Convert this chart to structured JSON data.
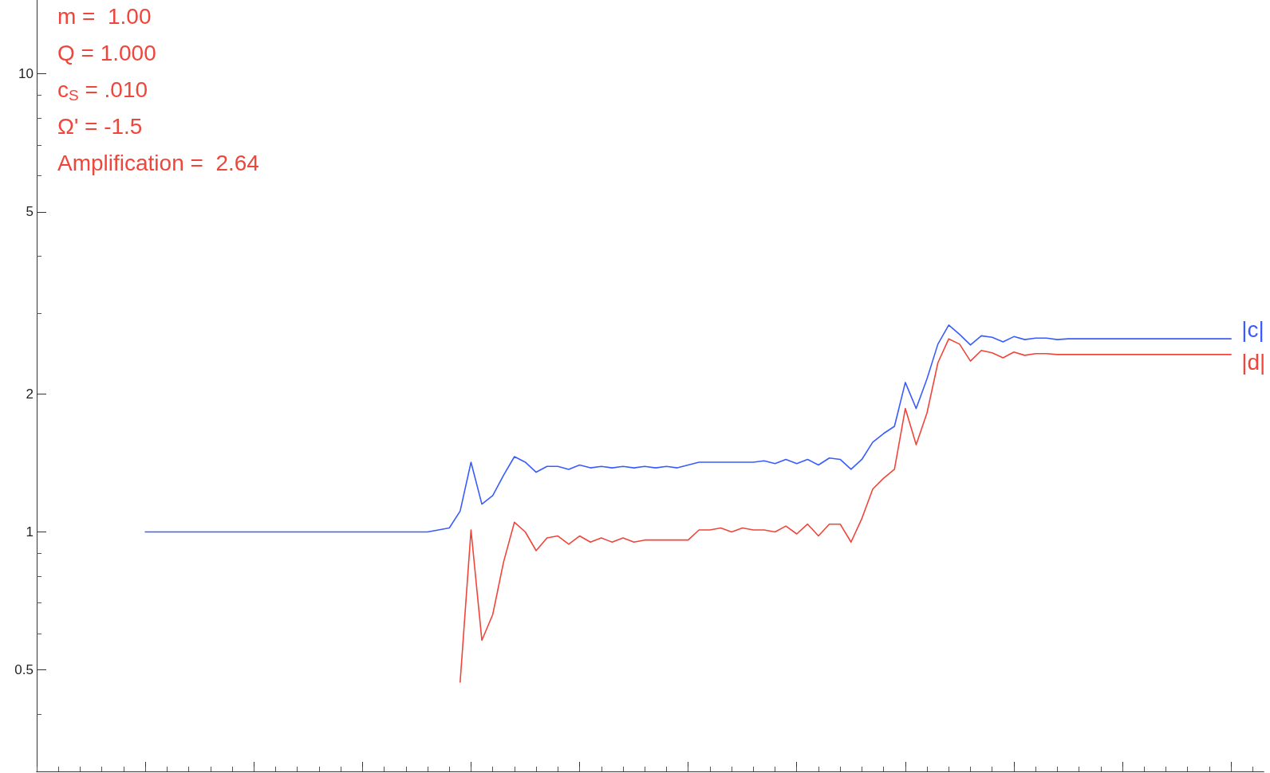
{
  "chart_data": {
    "type": "line",
    "log": true,
    "tick_labels": "y",
    "marker": "none",
    "line_style": "solid",
    "annotations": [
      "m =  1.00",
      "Q = 1.000",
      "c$_{S}$ = .010",
      "Ω' = -1.5",
      "Amplification =  2.64"
    ],
    "ylim": [
      0.3,
      14.5
    ],
    "yticks": [
      {
        "value": 0.4,
        "label": null
      },
      {
        "value": 0.5,
        "label": "0.5"
      },
      {
        "value": 0.6,
        "label": null
      },
      {
        "value": 0.7,
        "label": null
      },
      {
        "value": 0.8,
        "label": null
      },
      {
        "value": 0.9,
        "label": null
      },
      1,
      2,
      {
        "value": 3,
        "label": null
      },
      {
        "value": 4,
        "label": null
      },
      5,
      {
        "value": 6,
        "label": null
      },
      {
        "value": 7,
        "label": null
      },
      {
        "value": 8,
        "label": null
      },
      {
        "value": 9,
        "label": null
      },
      10
    ],
    "categories": [
      null,
      null,
      null,
      null,
      null,
      null,
      null,
      null,
      null,
      null,
      null,
      null,
      null,
      null,
      null,
      null,
      null,
      null,
      null,
      null,
      null,
      null,
      null,
      null,
      null,
      null,
      null,
      null,
      null,
      null,
      null,
      null,
      null,
      null,
      null,
      null,
      null,
      null,
      null,
      null,
      null,
      null,
      null,
      null,
      null,
      null,
      null,
      null,
      null,
      null,
      null,
      null,
      null,
      null,
      null,
      null,
      null,
      null,
      null,
      null,
      null,
      null,
      null,
      null,
      null,
      null,
      null,
      null,
      null,
      null,
      null,
      null,
      null,
      null,
      null,
      null,
      null,
      null,
      null,
      null,
      null,
      null,
      null,
      null,
      null,
      null,
      null,
      null,
      null,
      null,
      null,
      null,
      null,
      null,
      null,
      null,
      null,
      null,
      null,
      null,
      null,
      null,
      null,
      null,
      null,
      null,
      null,
      null,
      null,
      null,
      null,
      null,
      null,
      null
    ],
    "series": [
      {
        "name": "|c|",
        "color": "#3a5cff",
        "values": [
          null,
          null,
          null,
          null,
          null,
          null,
          null,
          null,
          null,
          null,
          1,
          1,
          1,
          1,
          1,
          1,
          1,
          1,
          1,
          1,
          1,
          1,
          1,
          1,
          1,
          1,
          1,
          1,
          1,
          1,
          1,
          1,
          1,
          1,
          1,
          1,
          1,
          1.01,
          1.02,
          1.11,
          1.42,
          1.15,
          1.2,
          1.33,
          1.46,
          1.42,
          1.35,
          1.39,
          1.39,
          1.37,
          1.4,
          1.38,
          1.39,
          1.38,
          1.39,
          1.38,
          1.39,
          1.38,
          1.39,
          1.38,
          1.4,
          1.42,
          1.42,
          1.42,
          1.42,
          1.42,
          1.42,
          1.43,
          1.41,
          1.44,
          1.41,
          1.44,
          1.4,
          1.45,
          1.44,
          1.37,
          1.44,
          1.57,
          1.64,
          1.7,
          2.12,
          1.86,
          2.16,
          2.57,
          2.83,
          2.7,
          2.56,
          2.68,
          2.66,
          2.6,
          2.67,
          2.63,
          2.65,
          2.65,
          2.63,
          2.64,
          2.64,
          2.64,
          2.64,
          2.64,
          2.64,
          2.64,
          2.64,
          2.64,
          2.64,
          2.64,
          2.64,
          2.64,
          2.64,
          2.64,
          2.64,
          null,
          null,
          null
        ]
      },
      {
        "name": "|d|",
        "color": "#f0453a",
        "values": [
          null,
          null,
          null,
          null,
          null,
          null,
          null,
          null,
          null,
          null,
          null,
          null,
          null,
          null,
          null,
          null,
          null,
          null,
          null,
          null,
          null,
          null,
          null,
          null,
          null,
          null,
          null,
          null,
          null,
          null,
          null,
          null,
          null,
          null,
          null,
          null,
          null,
          null,
          null,
          0.47,
          1.01,
          0.58,
          0.66,
          0.86,
          1.05,
          1.0,
          0.91,
          0.97,
          0.98,
          0.94,
          0.98,
          0.95,
          0.97,
          0.95,
          0.97,
          0.95,
          0.96,
          0.96,
          0.96,
          0.96,
          0.96,
          1.01,
          1.01,
          1.02,
          1.0,
          1.02,
          1.01,
          1.01,
          1.0,
          1.03,
          0.99,
          1.04,
          0.98,
          1.04,
          1.04,
          0.95,
          1.07,
          1.24,
          1.31,
          1.37,
          1.86,
          1.55,
          1.82,
          2.34,
          2.64,
          2.57,
          2.36,
          2.49,
          2.46,
          2.4,
          2.47,
          2.43,
          2.45,
          2.45,
          2.44,
          2.44,
          2.44,
          2.44,
          2.44,
          2.44,
          2.44,
          2.44,
          2.44,
          2.44,
          2.44,
          2.44,
          2.44,
          2.44,
          2.44,
          2.44,
          2.44,
          null,
          null,
          null
        ]
      }
    ]
  }
}
